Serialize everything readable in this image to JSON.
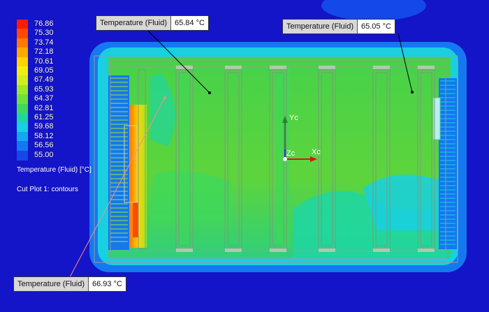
{
  "legend": {
    "values": [
      "76.86",
      "75.30",
      "73.74",
      "72.18",
      "70.61",
      "69.05",
      "67.49",
      "65.93",
      "64.37",
      "62.81",
      "61.25",
      "59.68",
      "58.12",
      "56.56",
      "55.00"
    ],
    "colors": [
      "#ff1a00",
      "#ff4a00",
      "#ff7a00",
      "#ffa800",
      "#ffd400",
      "#f3ec10",
      "#cfee1e",
      "#9be82a",
      "#6ee03a",
      "#3ed85a",
      "#20d6a0",
      "#18d0e0",
      "#14a8f0",
      "#1478f0",
      "#1448e8"
    ],
    "title": "Temperature (Fluid) [°C]",
    "plot_name": "Cut Plot 1: contours"
  },
  "probes": [
    {
      "label": "Temperature (Fluid)",
      "value": "65.84 °C"
    },
    {
      "label": "Temperature (Fluid)",
      "value": "65.05 °C"
    },
    {
      "label": "Temperature (Fluid)",
      "value": "66.93 °C"
    }
  ],
  "triad": {
    "x": "Xc",
    "y": "Yc",
    "z": "Zc"
  },
  "colors": {
    "background": "#1414c8",
    "fluid_green": "#5ed43c",
    "fluid_cyan": "#20d6b8",
    "hot_spot": "#ffd400"
  }
}
